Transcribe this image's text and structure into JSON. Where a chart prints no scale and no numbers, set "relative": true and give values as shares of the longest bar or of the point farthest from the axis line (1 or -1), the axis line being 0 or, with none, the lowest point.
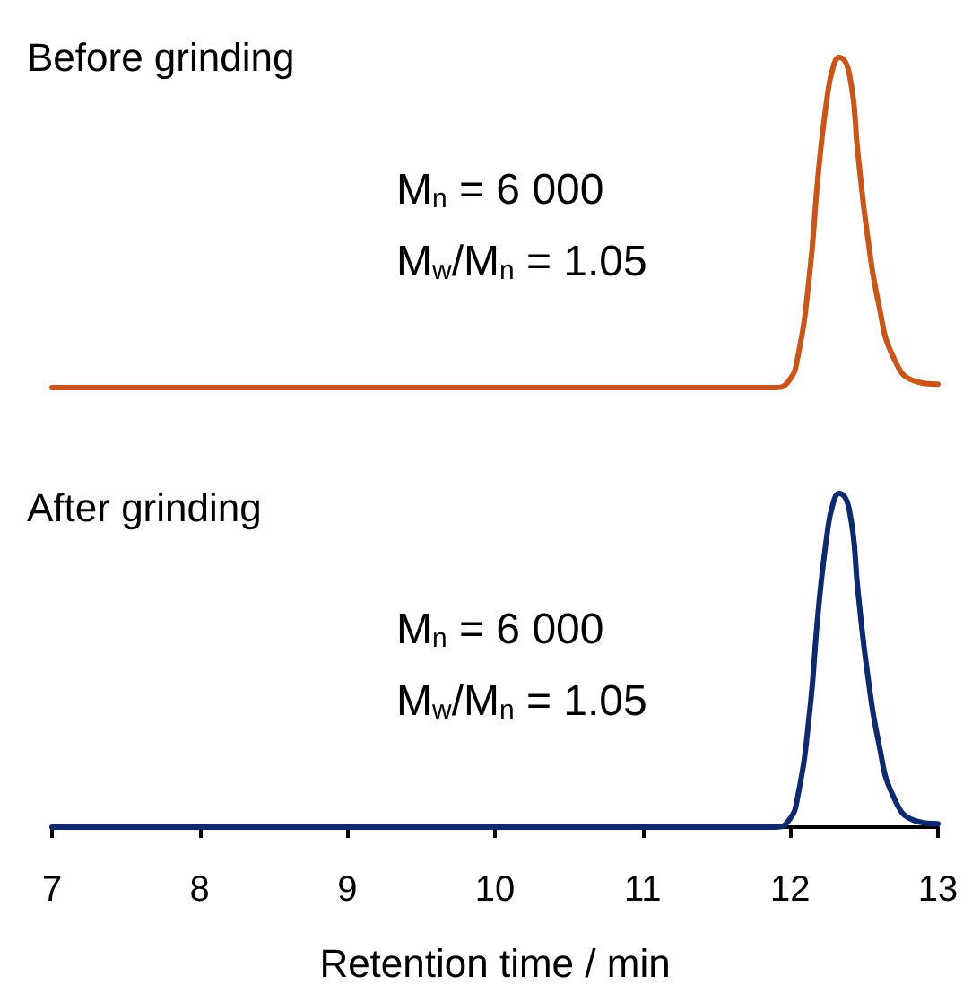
{
  "chart_data": [
    {
      "type": "line",
      "title": "Before grinding",
      "relative": true,
      "tick_labels": false,
      "xlim": [
        7,
        13
      ],
      "marker": "none",
      "line_style": "solid",
      "annotations": [
        "M$_{n}$ = 6 000",
        "M$_{w}$/M$_{n}$ = 1.05"
      ],
      "series": [
        {
          "color": "#c8561b",
          "x": [
            7,
            9,
            11,
            11.9,
            11.99,
            12.05,
            12.13,
            12.19,
            12.25,
            12.29,
            12.33,
            12.4,
            12.46,
            12.52,
            12.6,
            12.7,
            12.84,
            13
          ],
          "values": [
            0,
            0,
            0,
            0,
            0.02,
            0.09,
            0.34,
            0.65,
            0.88,
            0.97,
            1,
            0.95,
            0.7,
            0.47,
            0.25,
            0.09,
            0.02,
            0.01
          ]
        }
      ]
    },
    {
      "type": "line",
      "title": "After grinding",
      "relative": true,
      "tick_labels": "x",
      "xlim": [
        7,
        13
      ],
      "xticks": [
        7,
        8,
        9,
        10,
        11,
        12,
        13
      ],
      "xlabel": "Retention time / min",
      "marker": "none",
      "line_style": "solid",
      "annotations": [
        "M$_{n}$ = 6 000",
        "M$_{w}$/M$_{n}$ = 1.05"
      ],
      "series": [
        {
          "color": "#0d2a6e",
          "x": [
            7,
            9,
            11,
            11.9,
            11.99,
            12.05,
            12.13,
            12.19,
            12.25,
            12.29,
            12.33,
            12.4,
            12.46,
            12.52,
            12.6,
            12.7,
            12.84,
            13
          ],
          "values": [
            0,
            0,
            0,
            0,
            0.02,
            0.09,
            0.34,
            0.65,
            0.88,
            0.97,
            1,
            0.95,
            0.7,
            0.47,
            0.25,
            0.09,
            0.02,
            0.01
          ]
        }
      ]
    }
  ]
}
